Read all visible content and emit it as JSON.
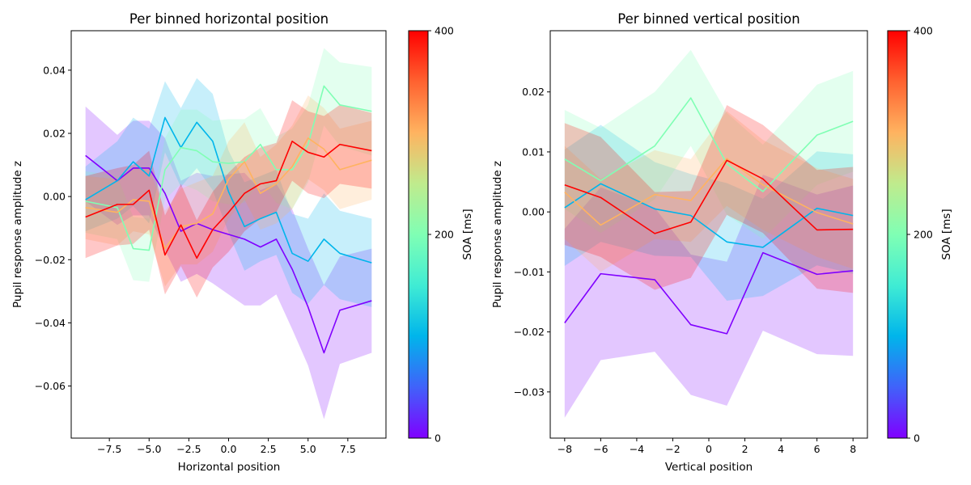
{
  "chart_data": [
    {
      "type": "line",
      "title": "Per binned horizontal position",
      "xlabel": "Horizontal position",
      "ylabel": "Pupil response amplitude z",
      "xlim": [
        -9.9,
        9.9
      ],
      "ylim": [
        -0.0765,
        0.0525
      ],
      "xticks": [
        -7.5,
        -5.0,
        -2.5,
        0.0,
        2.5,
        5.0,
        7.5
      ],
      "xtick_labels": [
        "−7.5",
        "−5.0",
        "−2.5",
        "0.0",
        "2.5",
        "5.0",
        "7.5"
      ],
      "yticks": [
        -0.06,
        -0.04,
        -0.02,
        0.0,
        0.02,
        0.04
      ],
      "ytick_labels": [
        "−0.06",
        "−0.04",
        "−0.02",
        "0.00",
        "0.02",
        "0.04"
      ],
      "x": [
        -9,
        -7,
        -6,
        -5,
        -4,
        -3,
        -2,
        -1,
        0,
        1,
        2,
        3,
        4,
        5,
        6,
        7,
        9
      ],
      "series": [
        {
          "soa": 0,
          "color": "#8000ff",
          "values": [
            0.013,
            0.005,
            0.009,
            0.009,
            0.001,
            -0.011,
            -0.0085,
            -0.0105,
            -0.012,
            -0.0135,
            -0.016,
            -0.0135,
            -0.023,
            -0.035,
            -0.0495,
            -0.036,
            -0.033
          ],
          "lower": [
            -0.0015,
            -0.009,
            -0.006,
            -0.006,
            -0.017,
            -0.027,
            -0.0245,
            -0.0275,
            -0.031,
            -0.0345,
            -0.0345,
            -0.031,
            -0.042,
            -0.0535,
            -0.0705,
            -0.053,
            -0.0495
          ],
          "upper": [
            0.0285,
            0.0195,
            0.024,
            0.024,
            0.0185,
            0.005,
            0.0075,
            0.0065,
            0.007,
            0.0075,
            0.002,
            0.004,
            -0.004,
            -0.0165,
            -0.028,
            -0.019,
            -0.0165
          ]
        },
        {
          "soa": 100,
          "color": "#00b5eb",
          "values": [
            -0.001,
            0.005,
            0.011,
            0.0065,
            0.025,
            0.0155,
            0.0235,
            0.0175,
            0.0015,
            -0.0095,
            -0.007,
            -0.005,
            -0.018,
            -0.0205,
            -0.0135,
            -0.018,
            -0.021
          ],
          "lower": [
            -0.011,
            -0.007,
            -0.003,
            -0.0085,
            0.014,
            0.003,
            0.009,
            0.002,
            -0.0115,
            -0.0235,
            -0.0205,
            -0.0185,
            -0.0305,
            -0.034,
            -0.028,
            -0.0325,
            -0.035
          ],
          "upper": [
            0.0095,
            0.0175,
            0.025,
            0.0215,
            0.0365,
            0.028,
            0.0375,
            0.0325,
            0.0145,
            0.0045,
            0.0065,
            0.0085,
            -0.0055,
            -0.007,
            0.001,
            -0.0045,
            -0.007
          ]
        },
        {
          "soa": 200,
          "color": "#80ffb4",
          "values": [
            -0.0015,
            -0.0035,
            -0.0165,
            -0.017,
            0.0085,
            0.0155,
            0.0145,
            0.011,
            0.0105,
            0.011,
            0.0165,
            0.0085,
            0.0085,
            0.0165,
            0.035,
            0.029,
            0.027
          ],
          "lower": [
            -0.0115,
            -0.0135,
            -0.0265,
            -0.027,
            -0.001,
            0.004,
            0.002,
            -0.0015,
            -0.0025,
            -0.002,
            0.005,
            -0.002,
            -0.004,
            0.0045,
            0.0225,
            0.016,
            0.013
          ],
          "upper": [
            0.008,
            0.0065,
            -0.0065,
            -0.007,
            0.0185,
            0.0275,
            0.0275,
            0.024,
            0.0245,
            0.0245,
            0.028,
            0.019,
            0.0215,
            0.029,
            0.047,
            0.0425,
            0.041
          ]
        },
        {
          "soa": 300,
          "color": "#ffb360",
          "values": [
            -0.0035,
            -0.005,
            -0.001,
            -0.0015,
            -0.0165,
            -0.0095,
            -0.0085,
            -0.0055,
            0.0055,
            0.011,
            0.001,
            0.004,
            0.0095,
            0.0185,
            0.015,
            0.0085,
            0.0115
          ],
          "lower": [
            -0.0135,
            -0.0155,
            -0.011,
            -0.012,
            -0.0285,
            -0.0215,
            -0.0215,
            -0.0175,
            -0.007,
            -0.001,
            -0.0105,
            -0.0085,
            -0.004,
            0.0055,
            0.002,
            -0.004,
            -0.001
          ],
          "upper": [
            0.0065,
            0.0055,
            0.009,
            0.009,
            -0.0045,
            0.0025,
            0.0045,
            0.0065,
            0.0175,
            0.0235,
            0.0125,
            0.0165,
            0.0225,
            0.032,
            0.028,
            0.0215,
            0.024
          ]
        },
        {
          "soa": 400,
          "color": "#ff0000",
          "values": [
            -0.0065,
            -0.0025,
            -0.0025,
            0.002,
            -0.0185,
            -0.009,
            -0.0195,
            -0.0105,
            -0.005,
            0.001,
            0.004,
            0.005,
            0.0175,
            0.014,
            0.0125,
            0.0165,
            0.0145
          ],
          "lower": [
            -0.0195,
            -0.0155,
            -0.015,
            -0.0105,
            -0.031,
            -0.022,
            -0.032,
            -0.0225,
            -0.0175,
            -0.011,
            -0.007,
            -0.005,
            0.005,
            0.001,
            -0.0005,
            0.004,
            0.0025
          ],
          "upper": [
            0.0065,
            0.009,
            0.01,
            0.0145,
            -0.006,
            0.004,
            -0.0075,
            0.0015,
            0.0075,
            0.0125,
            0.0155,
            0.017,
            0.0305,
            0.027,
            0.0255,
            0.029,
            0.0265
          ]
        }
      ]
    },
    {
      "type": "line",
      "title": "Per binned vertical position",
      "xlabel": "Vertical position",
      "ylabel": "Pupil response amplitude z",
      "xlim": [
        -8.8,
        8.8
      ],
      "ylim": [
        -0.0377,
        0.0302
      ],
      "xticks": [
        -8,
        -6,
        -4,
        -2,
        0,
        2,
        4,
        6,
        8
      ],
      "xtick_labels": [
        "−8",
        "−6",
        "−4",
        "−2",
        "0",
        "2",
        "4",
        "6",
        "8"
      ],
      "yticks": [
        -0.03,
        -0.02,
        -0.01,
        0.0,
        0.01,
        0.02
      ],
      "ytick_labels": [
        "−0.03",
        "−0.02",
        "−0.01",
        "0.00",
        "0.01",
        "0.02"
      ],
      "x": [
        -8,
        -6,
        -3,
        -1,
        1,
        3,
        6,
        8
      ],
      "series": [
        {
          "soa": 0,
          "color": "#8000ff",
          "values": [
            -0.0185,
            -0.0103,
            -0.0113,
            -0.0188,
            -0.0203,
            -0.0068,
            -0.0104,
            -0.0098
          ],
          "lower": [
            -0.0343,
            -0.0247,
            -0.0233,
            -0.0305,
            -0.0323,
            -0.0198,
            -0.0237,
            -0.024
          ],
          "upper": [
            -0.0028,
            0.0041,
            0.0007,
            -0.0071,
            -0.0083,
            0.0062,
            0.0029,
            0.0044
          ]
        },
        {
          "soa": 100,
          "color": "#00b5eb",
          "values": [
            0.0007,
            0.0047,
            0.0005,
            -0.0006,
            -0.005,
            -0.0059,
            0.0006,
            -0.0006
          ],
          "lower": [
            -0.009,
            -0.005,
            -0.0073,
            -0.0075,
            -0.0148,
            -0.014,
            -0.0089,
            -0.0103
          ],
          "upper": [
            0.0104,
            0.0145,
            0.0083,
            0.0063,
            0.0048,
            0.0022,
            0.0101,
            0.0096
          ]
        },
        {
          "soa": 200,
          "color": "#80ffb4",
          "values": [
            0.0088,
            0.0052,
            0.011,
            0.019,
            0.008,
            0.0034,
            0.0128,
            0.0151
          ],
          "lower": [
            0.0005,
            -0.0035,
            0.0021,
            0.011,
            -0.0005,
            -0.0045,
            0.0045,
            0.0067
          ],
          "upper": [
            0.017,
            0.014,
            0.02,
            0.027,
            0.0165,
            0.0112,
            0.0212,
            0.0235
          ]
        },
        {
          "soa": 300,
          "color": "#ffb360",
          "values": [
            0.0033,
            -0.0022,
            0.0029,
            0.0019,
            0.0089,
            0.0045,
            -0.0001,
            -0.002
          ],
          "lower": [
            -0.0045,
            -0.01,
            -0.0045,
            -0.005,
            0.001,
            -0.003,
            -0.0075,
            -0.0095
          ],
          "upper": [
            0.011,
            0.0055,
            0.0103,
            0.0088,
            0.0168,
            0.012,
            0.0073,
            0.0055
          ]
        },
        {
          "soa": 400,
          "color": "#ff0000",
          "values": [
            0.0045,
            0.0024,
            -0.0036,
            -0.0017,
            0.0086,
            0.0055,
            -0.003,
            -0.0029
          ],
          "lower": [
            -0.0055,
            -0.0075,
            -0.013,
            -0.011,
            -0.0005,
            -0.0035,
            -0.0128,
            -0.0135
          ],
          "upper": [
            0.0148,
            0.0125,
            0.0033,
            0.0035,
            0.0178,
            0.0145,
            0.007,
            0.0075
          ]
        }
      ]
    }
  ],
  "colorbars": [
    {
      "label": "SOA [ms]",
      "range": [
        0,
        400
      ],
      "tick_labels": [
        "0",
        "200",
        "400"
      ],
      "colormap": "rainbow",
      "stops": [
        "#8000ff",
        "#4062fa",
        "#00b5eb",
        "#40ecd4",
        "#80ffb4",
        "#c0eb8d",
        "#ffb360",
        "#ff6230",
        "#ff0000"
      ]
    },
    {
      "label": "SOA [ms]",
      "range": [
        0,
        400
      ],
      "tick_labels": [
        "0",
        "200",
        "400"
      ],
      "colormap": "rainbow",
      "stops": [
        "#8000ff",
        "#4062fa",
        "#00b5eb",
        "#40ecd4",
        "#80ffb4",
        "#c0eb8d",
        "#ffb360",
        "#ff6230",
        "#ff0000"
      ]
    }
  ]
}
